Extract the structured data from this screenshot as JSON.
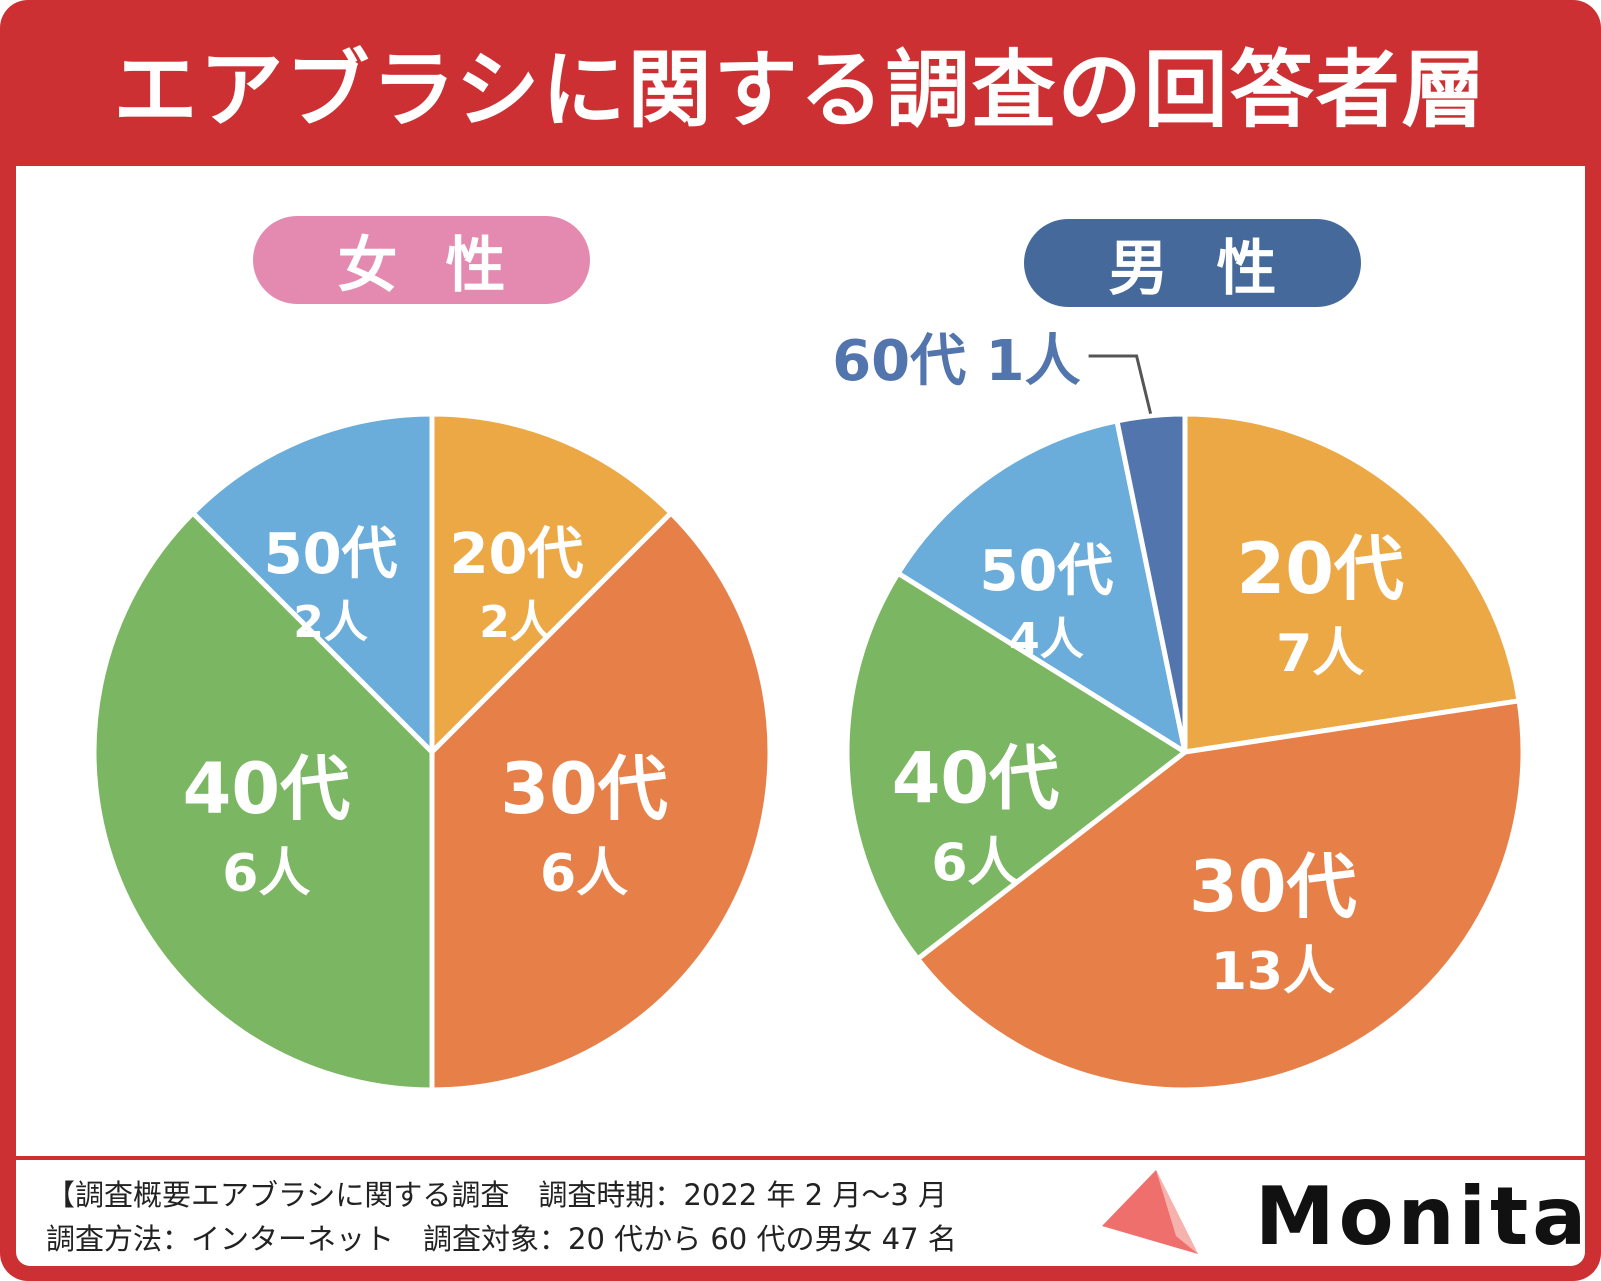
{
  "title": "エアブラシに関する調査の回答者層",
  "female_label": "女性",
  "male_label": "男性",
  "logo": "Monita",
  "notes": {
    "line1": "【調査概要エアブラシに関する調査　調査時期：2022 年 2 月〜3 月",
    "line2": "調査方法：インターネット　調査対象：20 代から 60 代の男女 47 名"
  },
  "colors": {
    "frame": "#cc3033",
    "female_pill": "#e48ab0",
    "male_pill": "#44699a",
    "20s": "#eba844",
    "30s": "#e68048",
    "40s": "#7bb662",
    "50s": "#6aadda",
    "60s": "#5275ae"
  },
  "chart_data": [
    {
      "type": "pie",
      "title": "女性",
      "unit": "人",
      "slices": [
        {
          "label": "20代",
          "value": 2,
          "value_text": "2人",
          "color_key": "20s"
        },
        {
          "label": "30代",
          "value": 6,
          "value_text": "6人",
          "color_key": "30s"
        },
        {
          "label": "40代",
          "value": 6,
          "value_text": "6人",
          "color_key": "40s"
        },
        {
          "label": "50代",
          "value": 2,
          "value_text": "2人",
          "color_key": "50s"
        }
      ]
    },
    {
      "type": "pie",
      "title": "男性",
      "unit": "人",
      "slices": [
        {
          "label": "20代",
          "value": 7,
          "value_text": "7人",
          "color_key": "20s"
        },
        {
          "label": "30代",
          "value": 13,
          "value_text": "13人",
          "color_key": "30s"
        },
        {
          "label": "40代",
          "value": 6,
          "value_text": "6人",
          "color_key": "40s"
        },
        {
          "label": "50代",
          "value": 4,
          "value_text": "4人",
          "color_key": "50s"
        },
        {
          "label": "60代",
          "value": 1,
          "value_text": "1人",
          "color_key": "60s",
          "callout": "60代 1人"
        }
      ]
    }
  ]
}
